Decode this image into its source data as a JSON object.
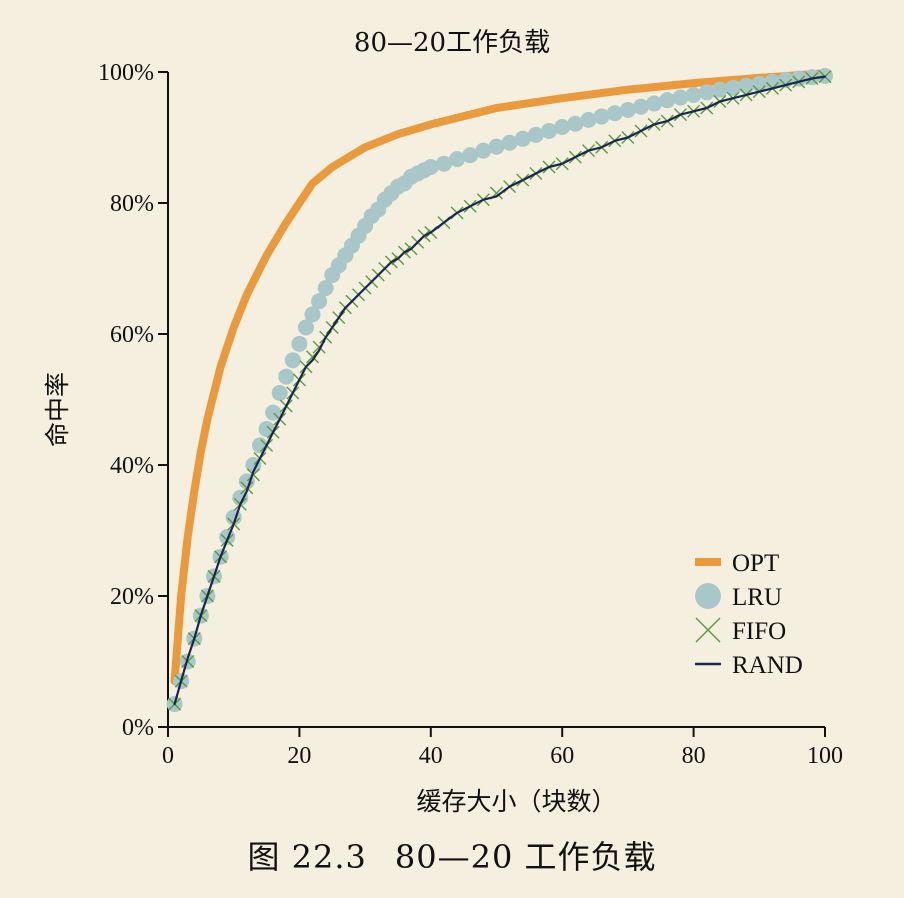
{
  "chart_data": {
    "type": "line",
    "title": "80—20工作负载",
    "xlabel": "缓存大小（块数）",
    "ylabel": "命中率",
    "xlim": [
      0,
      100
    ],
    "ylim": [
      0,
      100
    ],
    "x_ticks": [
      "0",
      "20",
      "40",
      "60",
      "80",
      "100"
    ],
    "y_ticks": [
      "0%",
      "20%",
      "40%",
      "60%",
      "80%",
      "100%"
    ],
    "legend_position": "bottom-right",
    "grid": false,
    "series": [
      {
        "name": "OPT",
        "marker": "line",
        "color": "#ea9a3c",
        "x": [
          1,
          2,
          3,
          4,
          5,
          6,
          8,
          10,
          12,
          15,
          18,
          20,
          22,
          25,
          30,
          35,
          40,
          50,
          60,
          70,
          80,
          90,
          100
        ],
        "values": [
          7,
          20,
          29,
          36,
          42,
          47,
          55,
          61,
          66,
          72,
          77,
          80,
          83,
          85.5,
          88.5,
          90.5,
          92,
          94.5,
          96,
          97.3,
          98.3,
          99.1,
          99.8
        ]
      },
      {
        "name": "LRU",
        "marker": "circle",
        "color": "#a9c6c9",
        "x": [
          1,
          2,
          3,
          4,
          5,
          6,
          7,
          8,
          9,
          10,
          11,
          12,
          13,
          14,
          15,
          16,
          17,
          18,
          19,
          20,
          21,
          22,
          23,
          24,
          25,
          26,
          27,
          28,
          29,
          30,
          31,
          32,
          33,
          34,
          35,
          36,
          37,
          38,
          39,
          40,
          42,
          44,
          46,
          48,
          50,
          52,
          54,
          56,
          58,
          60,
          62,
          64,
          66,
          68,
          70,
          72,
          74,
          76,
          78,
          80,
          82,
          84,
          86,
          88,
          90,
          92,
          94,
          96,
          98,
          100
        ],
        "values": [
          3.5,
          7,
          10,
          13.5,
          17,
          20,
          23,
          26,
          29,
          32,
          35,
          37.5,
          40,
          43,
          45.5,
          48,
          51,
          53.5,
          56,
          58.5,
          61,
          63,
          65,
          67,
          69,
          70.5,
          72,
          73.5,
          75,
          76.5,
          78,
          79,
          80.5,
          81.5,
          82.5,
          83,
          84,
          84.5,
          85,
          85.5,
          86,
          86.7,
          87.3,
          88,
          88.6,
          89.2,
          89.8,
          90.4,
          91,
          91.6,
          92.1,
          92.7,
          93.2,
          93.7,
          94.2,
          94.7,
          95.2,
          95.7,
          96.1,
          96.5,
          96.9,
          97.3,
          97.6,
          97.9,
          98.2,
          98.5,
          98.8,
          99,
          99.2,
          99.4
        ]
      },
      {
        "name": "FIFO",
        "marker": "x",
        "color": "#5a9a3c",
        "x": [
          1,
          2,
          3,
          4,
          5,
          6,
          7,
          8,
          9,
          10,
          11,
          12,
          13,
          14,
          15,
          16,
          17,
          18,
          19,
          20,
          21,
          22,
          23,
          24,
          25,
          26,
          27,
          28,
          29,
          30,
          31,
          32,
          33,
          34,
          35,
          36,
          37,
          38,
          39,
          40,
          42,
          44,
          46,
          48,
          50,
          52,
          54,
          56,
          58,
          60,
          62,
          64,
          66,
          68,
          70,
          72,
          74,
          76,
          78,
          80,
          82,
          84,
          86,
          88,
          90,
          92,
          94,
          96,
          98,
          100
        ],
        "values": [
          3.5,
          7,
          10,
          13.5,
          17,
          20,
          23,
          26,
          28.5,
          31,
          34,
          36.5,
          38.5,
          41,
          43,
          45,
          47,
          49,
          51,
          53,
          55,
          56.5,
          58,
          59.5,
          61,
          62.5,
          64,
          65,
          66,
          67,
          68,
          69,
          70,
          71,
          71.5,
          72.5,
          73,
          74,
          75,
          75.5,
          77,
          78.5,
          79.5,
          80.5,
          81.5,
          82.5,
          83.5,
          84.5,
          85.5,
          86,
          87,
          88,
          88.5,
          89.5,
          90,
          91,
          92,
          92.5,
          93.5,
          94,
          94.5,
          95.5,
          96,
          96.5,
          97,
          97.5,
          98,
          98.5,
          99,
          99.3
        ]
      },
      {
        "name": "RAND",
        "marker": "line",
        "color": "#1a2555",
        "x": [
          1,
          2,
          3,
          4,
          5,
          6,
          7,
          8,
          9,
          10,
          11,
          12,
          13,
          14,
          15,
          16,
          17,
          18,
          19,
          20,
          21,
          22,
          23,
          24,
          25,
          26,
          27,
          28,
          29,
          30,
          31,
          32,
          33,
          34,
          35,
          36,
          37,
          38,
          39,
          40,
          42,
          44,
          46,
          48,
          50,
          52,
          54,
          56,
          58,
          60,
          62,
          64,
          66,
          68,
          70,
          72,
          74,
          76,
          78,
          80,
          82,
          84,
          86,
          88,
          90,
          92,
          94,
          96,
          98,
          100
        ],
        "values": [
          3.5,
          7,
          10.5,
          13.5,
          17,
          20,
          23,
          26,
          28.5,
          31,
          34,
          36,
          39,
          41,
          43,
          45,
          47,
          49,
          51,
          53,
          55,
          56,
          57.5,
          59.5,
          61,
          62.5,
          64,
          65,
          66,
          67,
          68,
          69,
          70,
          71,
          71.5,
          72.5,
          73,
          74,
          75,
          75.5,
          77,
          78.5,
          79.5,
          80.5,
          81,
          82.5,
          83.5,
          84.5,
          85.5,
          86,
          87,
          88,
          88.5,
          89.5,
          90,
          91,
          92,
          92.5,
          93.5,
          94,
          94.5,
          95.5,
          96,
          96.5,
          97,
          97.5,
          98,
          98.5,
          99,
          99.3
        ]
      }
    ]
  },
  "caption": {
    "figure": "图 22.3",
    "title": "80—20 工作负载"
  }
}
